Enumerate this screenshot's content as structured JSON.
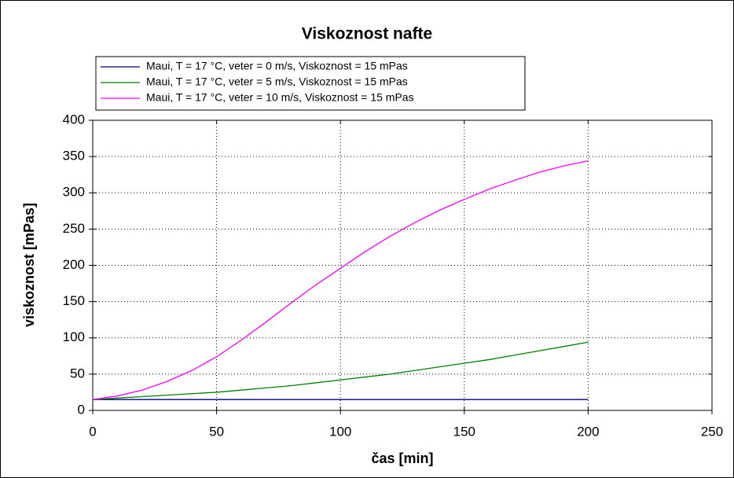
{
  "chart_data": {
    "type": "line",
    "title": "Viskoznost nafte",
    "x_label": "čas [min]",
    "y_label": "viskoznost [mPas]",
    "x": [
      0,
      10,
      20,
      30,
      40,
      50,
      60,
      70,
      80,
      90,
      100,
      110,
      120,
      130,
      140,
      150,
      160,
      170,
      180,
      190,
      200
    ],
    "series": [
      {
        "name": "Maui, T = 17 °C, veter = 0 m/s, Viskoznost = 15 mPas",
        "color": "#000080",
        "values": [
          15,
          15,
          15,
          15,
          15,
          15,
          15,
          15,
          15,
          15,
          15,
          15,
          15,
          15,
          15,
          15,
          15,
          15,
          15,
          15,
          15
        ]
      },
      {
        "name": "Maui, T = 17 °C, veter = 5 m/s, Viskoznost = 15 mPas",
        "color": "#008000",
        "values": [
          15,
          17,
          19,
          21,
          23,
          25,
          28,
          31,
          34,
          38,
          42,
          46,
          50,
          55,
          60,
          65,
          70,
          76,
          82,
          88,
          94
        ]
      },
      {
        "name": "Maui, T = 17 °C, veter = 10 m/s, Viskoznost = 15 mPas",
        "color": "#ff00ff",
        "values": [
          15,
          20,
          28,
          40,
          55,
          74,
          97,
          122,
          148,
          173,
          196,
          219,
          240,
          259,
          276,
          291,
          305,
          317,
          328,
          337,
          344
        ]
      }
    ],
    "xlim": [
      0,
      250
    ],
    "xticks": [
      0,
      50,
      100,
      150,
      200,
      250
    ],
    "ylim": [
      0,
      400
    ],
    "yticks": [
      0,
      50,
      100,
      150,
      200,
      250,
      300,
      350,
      400
    ],
    "grid": true,
    "legend": "top-left"
  }
}
